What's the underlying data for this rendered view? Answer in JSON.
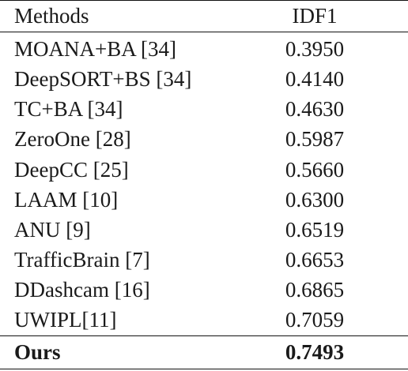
{
  "table": {
    "headers": {
      "method": "Methods",
      "score": "IDF1"
    },
    "rows": [
      {
        "method": "MOANA+BA [34]",
        "score": "0.3950"
      },
      {
        "method": "DeepSORT+BS [34]",
        "score": "0.4140"
      },
      {
        "method": "TC+BA [34]",
        "score": "0.4630"
      },
      {
        "method": "ZeroOne [28]",
        "score": "0.5987"
      },
      {
        "method": "DeepCC [25]",
        "score": "0.5660"
      },
      {
        "method": "LAAM [10]",
        "score": "0.6300"
      },
      {
        "method": "ANU [9]",
        "score": "0.6519"
      },
      {
        "method": "TrafficBrain [7]",
        "score": "0.6653"
      },
      {
        "method": "DDashcam [16]",
        "score": "0.6865"
      },
      {
        "method": "UWIPL[11]",
        "score": "0.7059"
      }
    ],
    "ours": {
      "method": "Ours",
      "score": "0.7493"
    }
  }
}
